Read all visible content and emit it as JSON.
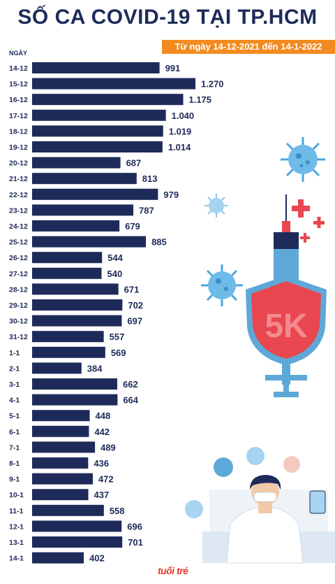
{
  "chart_data": {
    "type": "bar",
    "orientation": "horizontal",
    "title": "SỐ CA COVID-19 TẠI TP.HCM",
    "subtitle": "Từ ngày 14-12-2021 đến 14-1-2022",
    "ylabel": "NGÀY",
    "categories": [
      "14-12",
      "15-12",
      "16-12",
      "17-12",
      "18-12",
      "19-12",
      "20-12",
      "21-12",
      "22-12",
      "23-12",
      "24-12",
      "25-12",
      "26-12",
      "27-12",
      "28-12",
      "29-12",
      "30-12",
      "31-12",
      "1-1",
      "2-1",
      "3-1",
      "4-1",
      "5-1",
      "6-1",
      "7-1",
      "8-1",
      "9-1",
      "10-1",
      "11-1",
      "12-1",
      "13-1",
      "14-1"
    ],
    "values": [
      991,
      1270,
      1175,
      1040,
      1019,
      1014,
      687,
      813,
      979,
      787,
      679,
      885,
      544,
      540,
      671,
      702,
      697,
      557,
      569,
      384,
      662,
      664,
      448,
      442,
      489,
      436,
      472,
      437,
      558,
      696,
      701,
      402
    ],
    "value_labels": [
      "991",
      "1.270",
      "1.175",
      "1.040",
      "1.019",
      "1.014",
      "687",
      "813",
      "979",
      "787",
      "679",
      "885",
      "544",
      "540",
      "671",
      "702",
      "697",
      "557",
      "569",
      "384",
      "662",
      "664",
      "448",
      "442",
      "489",
      "436",
      "472",
      "437",
      "558",
      "696",
      "701",
      "402"
    ],
    "xlim": [
      0,
      1270
    ],
    "bar_color": "#1e2b5a",
    "grid": false
  },
  "illustration": {
    "shield_text": "5K",
    "colors": {
      "shield": "#e8474f",
      "shield_border": "#5ea8d8",
      "virus": "#4aa6e0",
      "cross": "#e8474f"
    }
  },
  "logo": {
    "text": "tuổi trẻ",
    "color": "#e23a2c"
  }
}
